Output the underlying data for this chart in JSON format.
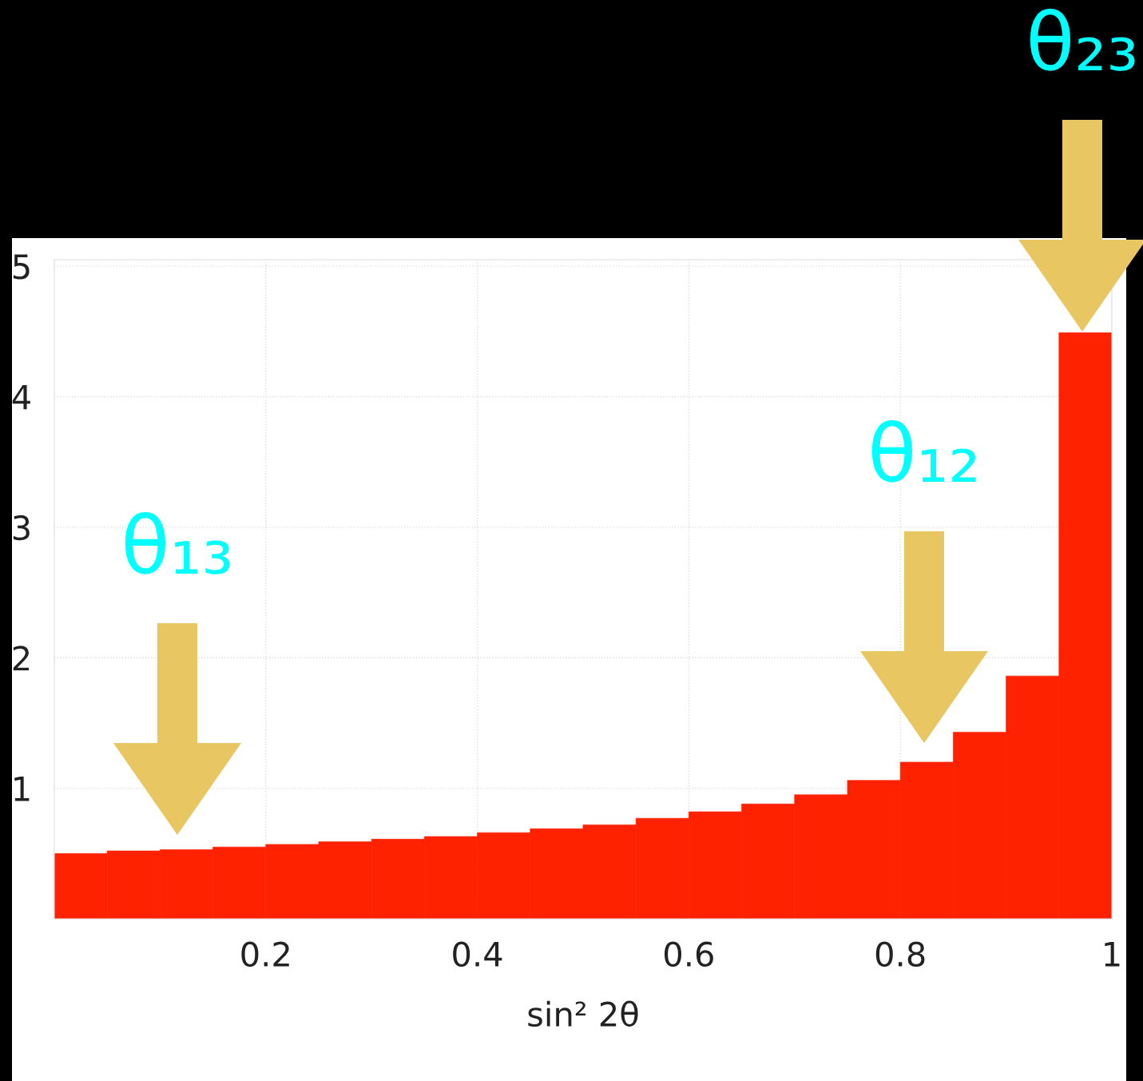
{
  "chart_data": {
    "type": "histogram",
    "bins": [
      0,
      0.05,
      0.1,
      0.15,
      0.2,
      0.25,
      0.3,
      0.35,
      0.4,
      0.45,
      0.5,
      0.55,
      0.6,
      0.65,
      0.7,
      0.75,
      0.8,
      0.85,
      0.9,
      0.95,
      1
    ],
    "values": [
      0.5,
      0.52,
      0.53,
      0.55,
      0.57,
      0.59,
      0.61,
      0.63,
      0.66,
      0.69,
      0.72,
      0.77,
      0.82,
      0.88,
      0.95,
      1.06,
      1.2,
      1.43,
      1.86,
      4.49
    ],
    "color": "#ff2200",
    "xlabel": "sin² 2θ",
    "xlim": [
      0,
      1
    ],
    "ylim": [
      0,
      5.05
    ],
    "xticks": [
      0.2,
      0.4,
      0.6,
      0.8,
      1
    ],
    "yticks": [
      1,
      2,
      3,
      4,
      5
    ],
    "grid": true,
    "annotations": [
      "θ₁₃",
      "θ₁₂",
      "θ₂₃"
    ]
  }
}
